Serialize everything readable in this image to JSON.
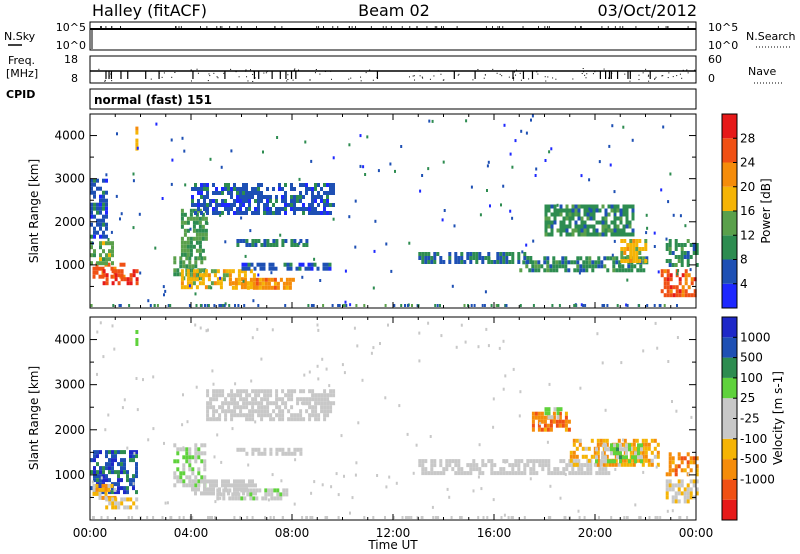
{
  "header": {
    "station": "Halley (fitACF)",
    "beam": "Beam 02",
    "date": "03/Oct/2012"
  },
  "noise_panel": {
    "left_label": "N.Sky",
    "right_label": "N.Search",
    "left_ticks": [
      "10^5",
      "10^0"
    ],
    "right_ticks": [
      "10^5",
      "10^0"
    ]
  },
  "freq_panel": {
    "left_label_line1": "Freq.",
    "left_label_line2": "[MHz]",
    "left_ticks": [
      "18",
      "8"
    ],
    "right_label": "Nave",
    "right_ticks": [
      "60",
      "0"
    ]
  },
  "cpid_panel": {
    "label": "CPID",
    "text": "normal (fast) 151"
  },
  "time_axis": {
    "label": "Time UT",
    "ticks": [
      "00:00",
      "04:00",
      "08:00",
      "12:00",
      "16:00",
      "20:00",
      "00:00"
    ]
  },
  "colors": {
    "power_scale": [
      "#1e28ff",
      "#1e50b4",
      "#2d8c50",
      "#5aa04b",
      "#f5b405",
      "#f58c0a",
      "#f05014",
      "#e61919"
    ],
    "velocity_scale": [
      "#e61919",
      "#f05014",
      "#f58c0a",
      "#f5b405",
      "#c8c8c8",
      "#c8c8c8",
      "#5fd23c",
      "#2d8c50",
      "#1e50b4",
      "#1e28c8"
    ]
  },
  "chart_data": [
    {
      "type": "heatmap",
      "name": "power",
      "ylabel": "Slant Range [km]",
      "yticks": [
        "1000",
        "2000",
        "3000",
        "4000"
      ],
      "ylim": [
        0,
        4500
      ],
      "xlim_hours": [
        0,
        24
      ],
      "colorbar_label": "Power [dB]",
      "colorbar_ticks": [
        "4",
        "8",
        "12",
        "16",
        "20",
        "24",
        "28"
      ],
      "colorbar_range": [
        0,
        32
      ],
      "regions": [
        {
          "t0": 0.1,
          "t1": 1.4,
          "r0": 700,
          "r1": 1050,
          "v": 24
        },
        {
          "t0": 0.5,
          "t1": 1.9,
          "r0": 600,
          "r1": 900,
          "v": 28
        },
        {
          "t0": 0.0,
          "t1": 0.9,
          "r0": 1000,
          "r1": 1550,
          "v": 14
        },
        {
          "t0": 0.0,
          "t1": 0.6,
          "r0": 1700,
          "r1": 3000,
          "v": 6
        },
        {
          "t0": 3.3,
          "t1": 4.6,
          "r0": 700,
          "r1": 1200,
          "v": 12
        },
        {
          "t0": 3.6,
          "t1": 6.5,
          "r0": 500,
          "r1": 900,
          "v": 18
        },
        {
          "t0": 5.5,
          "t1": 8.0,
          "r0": 450,
          "r1": 700,
          "v": 22
        },
        {
          "t0": 3.6,
          "t1": 4.6,
          "r0": 1200,
          "r1": 2300,
          "v": 12
        },
        {
          "t0": 4.0,
          "t1": 9.6,
          "r0": 2200,
          "r1": 2900,
          "v": 6
        },
        {
          "t0": 5.8,
          "t1": 8.6,
          "r0": 1450,
          "r1": 1600,
          "v": 8
        },
        {
          "t0": 6.0,
          "t1": 9.5,
          "r0": 900,
          "r1": 1050,
          "v": 6
        },
        {
          "t0": 13.0,
          "t1": 17.5,
          "r0": 1050,
          "r1": 1300,
          "v": 8
        },
        {
          "t0": 17.0,
          "t1": 22.0,
          "r0": 900,
          "r1": 1200,
          "v": 10
        },
        {
          "t0": 18.0,
          "t1": 21.5,
          "r0": 1700,
          "r1": 2400,
          "v": 10
        },
        {
          "t0": 21.0,
          "t1": 22.0,
          "r0": 1050,
          "r1": 1600,
          "v": 18
        },
        {
          "t0": 22.6,
          "t1": 24.0,
          "r0": 300,
          "r1": 900,
          "v": 26
        },
        {
          "t0": 22.8,
          "t1": 24.0,
          "r0": 1000,
          "r1": 1600,
          "v": 10
        },
        {
          "t0": 1.8,
          "t1": 1.85,
          "r0": 3700,
          "r1": 4300,
          "v": 18
        }
      ]
    },
    {
      "type": "heatmap",
      "name": "velocity",
      "ylabel": "Slant Range [km]",
      "yticks": [
        "1000",
        "2000",
        "3000",
        "4000"
      ],
      "ylim": [
        0,
        4500
      ],
      "xlim_hours": [
        0,
        24
      ],
      "colorbar_label": "Velocity [m s-1]",
      "colorbar_ticks": [
        "1000",
        "500",
        "100",
        "25",
        "-25",
        "-100",
        "-500",
        "-1000"
      ],
      "colorbar_range": [
        -1250,
        1250
      ],
      "regions": [
        {
          "t0": 0.0,
          "t1": 1.9,
          "r0": 600,
          "r1": 1550,
          "v": 900
        },
        {
          "t0": 0.1,
          "t1": 1.0,
          "r0": 500,
          "r1": 800,
          "v": -400
        },
        {
          "t0": 0.6,
          "t1": 1.8,
          "r0": 300,
          "r1": 500,
          "v": -200
        },
        {
          "t0": 3.3,
          "t1": 4.6,
          "r0": 800,
          "r1": 1700,
          "v": 200
        },
        {
          "t0": 4.0,
          "t1": 6.5,
          "r0": 600,
          "r1": 900,
          "v": 0
        },
        {
          "t0": 5.0,
          "t1": 7.8,
          "r0": 500,
          "r1": 700,
          "v": 120
        },
        {
          "t0": 4.6,
          "t1": 9.6,
          "r0": 2200,
          "r1": 2900,
          "v": 0
        },
        {
          "t0": 5.8,
          "t1": 8.4,
          "r0": 1450,
          "r1": 1600,
          "v": 0
        },
        {
          "t0": 13.0,
          "t1": 20.5,
          "r0": 1050,
          "r1": 1350,
          "v": 0
        },
        {
          "t0": 17.5,
          "t1": 19.0,
          "r0": 2000,
          "r1": 2400,
          "v": -700
        },
        {
          "t0": 18.0,
          "t1": 18.6,
          "r0": 2300,
          "r1": 2500,
          "v": 300
        },
        {
          "t0": 19.0,
          "t1": 22.5,
          "r0": 1200,
          "r1": 1800,
          "v": -450
        },
        {
          "t0": 20.0,
          "t1": 21.8,
          "r0": 1300,
          "r1": 1700,
          "v": 300
        },
        {
          "t0": 22.8,
          "t1": 24.0,
          "r0": 400,
          "r1": 900,
          "v": -150
        },
        {
          "t0": 22.8,
          "t1": 24.0,
          "r0": 1000,
          "r1": 1500,
          "v": -600
        },
        {
          "t0": 1.8,
          "t1": 1.85,
          "r0": 3900,
          "r1": 4300,
          "v": 500
        }
      ]
    }
  ]
}
